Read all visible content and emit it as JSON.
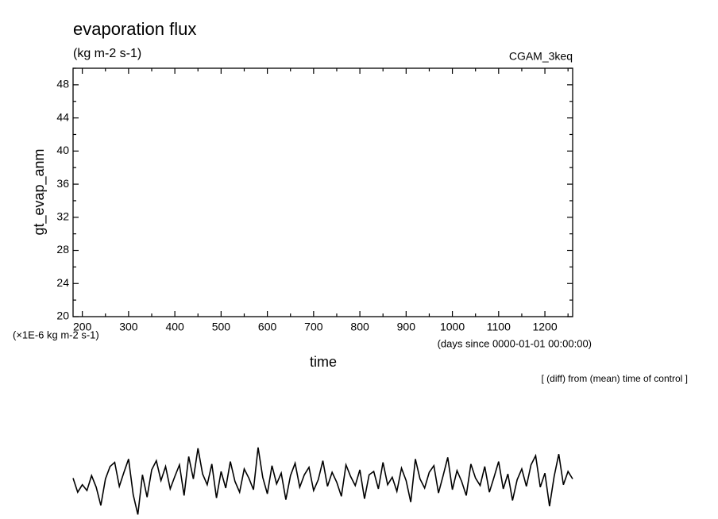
{
  "chart_data": {
    "type": "line",
    "title": "evaporation flux",
    "subtitle": "(kg m-2 s-1)",
    "annotation_right": "CGAM_3keq",
    "y_label": "gt_evap_anm",
    "y_unit_note": "(×1E-6 kg m-2 s-1)",
    "x_label": "time",
    "x_unit_note": "(days since 0000-01-01 00:00:00)",
    "footnote": "[ (diff) from (mean) time of control ]",
    "xlim": [
      180,
      1260
    ],
    "ylim": [
      20,
      50
    ],
    "xticks": [
      200,
      300,
      400,
      500,
      600,
      700,
      800,
      900,
      1000,
      1100,
      1200
    ],
    "xminor_ticks": [
      250,
      350,
      450,
      550,
      650,
      750,
      850,
      950,
      1050,
      1150,
      1250
    ],
    "yticks": [
      20,
      24,
      28,
      32,
      36,
      40,
      44,
      48
    ],
    "yminor_ticks": [
      22,
      26,
      30,
      34,
      38,
      42,
      46,
      50
    ],
    "color": "#000000",
    "x": [
      180,
      190,
      200,
      210,
      220,
      230,
      240,
      250,
      260,
      270,
      280,
      290,
      300,
      310,
      320,
      330,
      340,
      350,
      360,
      370,
      380,
      390,
      400,
      410,
      420,
      430,
      440,
      450,
      460,
      470,
      480,
      490,
      500,
      510,
      520,
      530,
      540,
      550,
      560,
      570,
      580,
      590,
      600,
      610,
      620,
      630,
      640,
      650,
      660,
      670,
      680,
      690,
      700,
      710,
      720,
      730,
      740,
      750,
      760,
      770,
      780,
      790,
      800,
      810,
      820,
      830,
      840,
      850,
      860,
      870,
      880,
      890,
      900,
      910,
      920,
      930,
      940,
      950,
      960,
      970,
      980,
      990,
      1000,
      1010,
      1020,
      1030,
      1040,
      1050,
      1060,
      1070,
      1080,
      1090,
      1100,
      1110,
      1120,
      1130,
      1140,
      1150,
      1160,
      1170,
      1180,
      1190,
      1200,
      1210,
      1220,
      1230,
      1240,
      1250,
      1260
    ],
    "values": [
      0.5,
      -1.2,
      -0.3,
      -1.0,
      0.8,
      -0.6,
      -2.8,
      0.4,
      1.9,
      2.4,
      -0.5,
      1.2,
      2.8,
      -1.5,
      -3.9,
      0.9,
      -1.8,
      1.5,
      2.6,
      0.2,
      1.9,
      -0.8,
      0.7,
      2.1,
      -1.6,
      3.1,
      0.4,
      4.1,
      1.0,
      -0.3,
      2.2,
      -1.9,
      1.3,
      -0.7,
      2.5,
      0.1,
      -1.2,
      1.6,
      0.5,
      -0.9,
      4.2,
      0.6,
      -1.4,
      2.0,
      -0.2,
      1.1,
      -2.1,
      0.8,
      2.3,
      -0.6,
      0.9,
      1.8,
      -1.0,
      0.3,
      2.6,
      -0.5,
      1.2,
      0.0,
      -1.7,
      2.1,
      0.7,
      -0.4,
      1.5,
      -2.0,
      0.9,
      1.3,
      -0.8,
      2.4,
      -0.3,
      0.6,
      -1.1,
      1.7,
      0.2,
      -2.4,
      2.8,
      0.4,
      -0.7,
      1.2,
      2.0,
      -1.3,
      0.8,
      3.0,
      -0.9,
      1.4,
      0.1,
      -1.6,
      2.2,
      0.5,
      -0.4,
      1.9,
      -1.2,
      0.6,
      2.5,
      -0.8,
      1.0,
      -2.2,
      0.3,
      1.6,
      -0.5,
      2.1,
      3.2,
      -0.6,
      1.1,
      -2.9,
      0.7,
      3.4,
      -0.3,
      1.3,
      0.4
    ]
  }
}
